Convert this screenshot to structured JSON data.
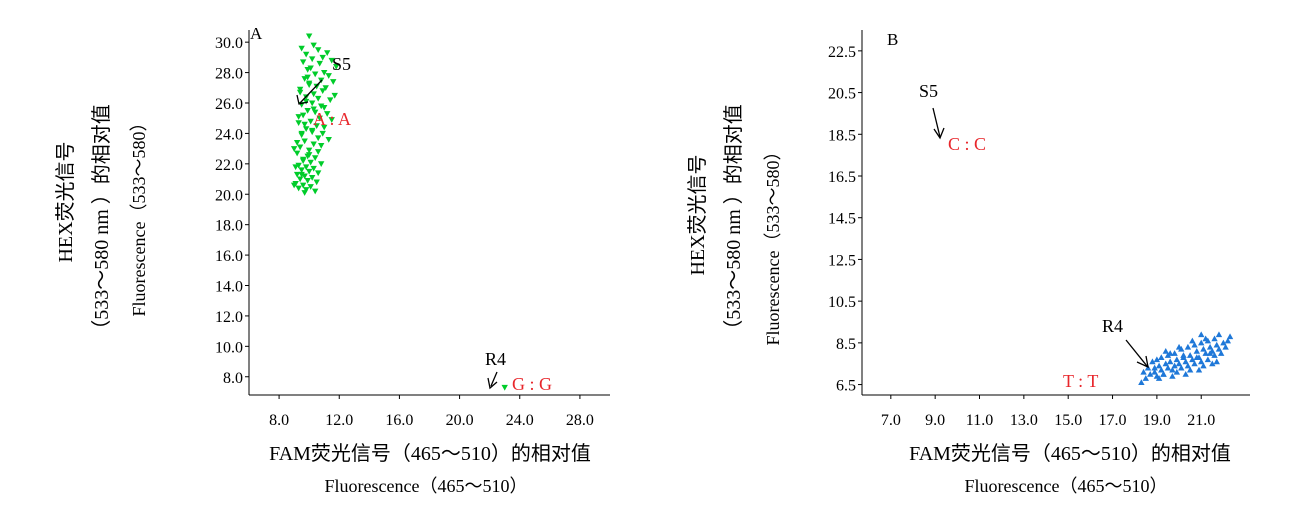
{
  "chart_data": [
    {
      "type": "scatter",
      "panel_label": "A",
      "x_title_line1": "FAM荧光信号（465～510）的相对值",
      "x_title_line2": "Fluorescence（465～510）",
      "y_title_line1": "HEX荧光信号",
      "y_title_line2": "（533～580 nm ）的相对值",
      "y_title_line3": "Fluorescence（533～580）",
      "xlim": [
        6.0,
        30.0
      ],
      "ylim": [
        6.8,
        30.8
      ],
      "x_ticks": [
        "8.0",
        "12.0",
        "16.0",
        "20.0",
        "24.0",
        "28.0"
      ],
      "y_ticks": [
        "8.0",
        "10.0",
        "12.0",
        "14.0",
        "16.0",
        "18.0",
        "20.0",
        "22.0",
        "24.0",
        "26.0",
        "28.0",
        "30.0"
      ],
      "colors": {
        "points": "#00cc2a"
      },
      "marker": "triangle-down",
      "annotations": [
        {
          "text": "S5",
          "color": "black"
        },
        {
          "text": "A : A",
          "color": "red"
        },
        {
          "text": "R4",
          "color": "black"
        },
        {
          "text": "G : G",
          "color": "red"
        }
      ],
      "x": [
        10.0,
        10.3,
        9.5,
        10.6,
        11.2,
        9.8,
        10.9,
        10.2,
        11.5,
        9.6,
        10.7,
        11.8,
        10.1,
        9.9,
        11.0,
        10.4,
        11.3,
        9.7,
        10.8,
        11.6,
        10.0,
        10.5,
        11.1,
        9.4,
        10.9,
        10.3,
        11.7,
        9.8,
        10.6,
        11.4,
        10.2,
        9.5,
        10.8,
        11.0,
        9.9,
        10.4,
        11.2,
        9.6,
        10.7,
        11.5,
        10.1,
        9.3,
        10.5,
        11.0,
        9.8,
        10.2,
        10.9,
        9.5,
        10.6,
        11.3,
        9.7,
        10.3,
        10.8,
        9.4,
        10.0,
        10.6,
        9.2,
        9.9,
        10.4,
        9.6,
        10.1,
        10.8,
        9.3,
        9.8,
        10.3,
        9.5,
        10.0,
        10.6,
        9.2,
        9.7,
        10.2,
        9.4,
        9.9,
        10.5,
        9.1,
        9.6,
        10.1,
        9.3,
        9.8,
        10.4,
        9.0,
        9.5,
        10.0,
        9.2,
        9.7,
        10.3,
        9.4,
        9.9,
        9.1,
        9.6,
        10.2,
        9.3,
        9.8,
        9.0,
        9.5,
        10.0,
        9.7,
        23.0
      ],
      "y": [
        30.4,
        29.8,
        29.6,
        29.5,
        29.3,
        29.2,
        29.0,
        28.9,
        28.8,
        28.7,
        28.6,
        28.4,
        28.3,
        28.2,
        28.0,
        27.9,
        27.8,
        27.6,
        27.5,
        27.4,
        27.2,
        27.1,
        27.0,
        26.9,
        26.8,
        26.6,
        26.5,
        26.4,
        26.3,
        26.2,
        26.0,
        25.9,
        25.8,
        25.7,
        25.5,
        25.4,
        25.3,
        25.2,
        25.0,
        24.9,
        24.8,
        24.7,
        24.5,
        24.4,
        24.3,
        24.1,
        24.0,
        23.9,
        23.7,
        23.6,
        23.5,
        23.3,
        23.2,
        23.1,
        22.9,
        22.8,
        22.7,
        22.5,
        22.4,
        22.3,
        22.1,
        22.0,
        21.9,
        21.8,
        21.7,
        21.6,
        21.5,
        21.4,
        21.3,
        21.2,
        21.1,
        21.0,
        20.9,
        20.8,
        20.7,
        20.6,
        20.5,
        20.4,
        20.3,
        20.2,
        20.6,
        21.3,
        22.6,
        23.4,
        24.6,
        25.6,
        26.7,
        27.7,
        21.8,
        22.2,
        24.2,
        25.1,
        26.1,
        23.0,
        24.0,
        27.3,
        20.1,
        7.3
      ]
    },
    {
      "type": "scatter",
      "panel_label": "B",
      "x_title_line1": "FAM荧光信号（465～510）的相对值",
      "x_title_line2": "Fluorescence（465～510）",
      "y_title_line1": "HEX荧光信号",
      "y_title_line2": "（533～580 nm ）的相对值",
      "y_title_line3": "Fluorescence（533～580）",
      "xlim": [
        5.7,
        23.2
      ],
      "ylim": [
        6.0,
        23.5
      ],
      "x_ticks": [
        "7.0",
        "9.0",
        "11.0",
        "13.0",
        "15.0",
        "17.0",
        "19.0",
        "21.0"
      ],
      "y_ticks": [
        "6.5",
        "8.5",
        "10.5",
        "12.5",
        "14.5",
        "16.5",
        "18.5",
        "20.5",
        "22.5"
      ],
      "colors": {
        "points": "#1f78d8"
      },
      "marker": "triangle-up",
      "annotations": [
        {
          "text": "S5",
          "color": "black"
        },
        {
          "text": "C : C",
          "color": "red"
        },
        {
          "text": "R4",
          "color": "black"
        },
        {
          "text": "T : T",
          "color": "red"
        }
      ],
      "x": [
        18.3,
        18.5,
        18.7,
        18.6,
        18.9,
        19.0,
        19.1,
        18.8,
        19.2,
        19.3,
        19.4,
        19.5,
        19.2,
        19.6,
        19.7,
        19.8,
        19.5,
        19.9,
        20.0,
        20.1,
        19.8,
        20.2,
        20.3,
        20.4,
        20.1,
        20.5,
        20.6,
        20.7,
        20.4,
        20.8,
        20.9,
        21.0,
        20.7,
        21.1,
        21.2,
        21.3,
        21.0,
        21.4,
        21.5,
        21.6,
        21.3,
        21.7,
        21.8,
        21.9,
        21.6,
        22.0,
        22.1,
        22.3,
        18.4,
        19.0,
        19.6,
        20.0,
        20.6,
        21.2,
        21.8,
        19.3,
        19.9,
        20.5,
        21.1,
        21.7,
        18.9,
        19.4,
        20.2,
        20.8,
        21.4,
        22.2,
        19.1,
        19.7,
        20.3,
        20.9,
        21.5,
        21.0
      ],
      "y": [
        6.6,
        6.8,
        7.0,
        7.3,
        7.1,
        6.9,
        7.4,
        7.6,
        7.2,
        7.0,
        7.5,
        7.3,
        7.8,
        7.6,
        7.2,
        7.4,
        7.9,
        7.7,
        7.5,
        7.3,
        8.0,
        7.8,
        7.6,
        7.4,
        8.2,
        7.9,
        7.7,
        7.5,
        8.3,
        8.1,
        7.8,
        7.6,
        8.4,
        8.2,
        8.0,
        7.7,
        8.5,
        8.3,
        8.1,
        7.9,
        8.6,
        8.4,
        8.2,
        8.0,
        8.7,
        8.5,
        8.3,
        8.8,
        7.1,
        7.7,
        8.0,
        8.3,
        8.6,
        8.7,
        8.9,
        7.0,
        7.1,
        7.2,
        7.4,
        7.6,
        7.3,
        8.1,
        7.9,
        7.8,
        8.0,
        8.6,
        6.8,
        6.9,
        7.0,
        7.2,
        7.5,
        8.9
      ]
    }
  ]
}
